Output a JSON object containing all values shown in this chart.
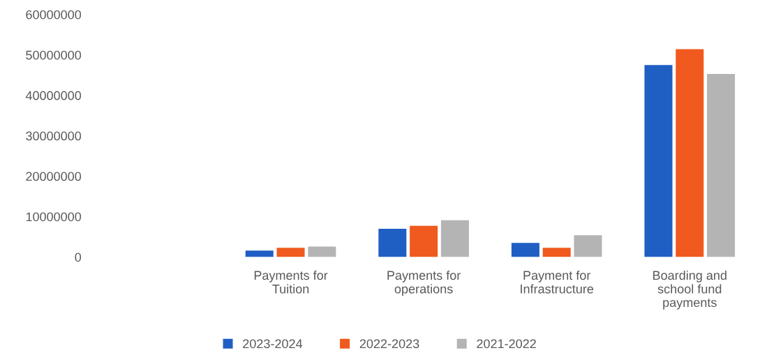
{
  "chart_data": {
    "type": "bar",
    "categories": [
      null,
      "Payments for\nTuition",
      "Payments for\noperations",
      "Payment for\nInfrastructure",
      "Boarding and\nschool fund\npayments"
    ],
    "series": [
      {
        "name": "2023-2024",
        "color": "#1f5fc4",
        "values": [
          null,
          1600000,
          7000000,
          3500000,
          47500000
        ]
      },
      {
        "name": "2022-2023",
        "color": "#f05a1e",
        "values": [
          null,
          2300000,
          7700000,
          2300000,
          51400000
        ]
      },
      {
        "name": "2021-2022",
        "color": "#b4b4b4",
        "values": [
          null,
          2600000,
          9100000,
          5400000,
          45300000
        ]
      }
    ],
    "ylim": [
      0,
      60000000
    ],
    "yticks": [
      0,
      10000000,
      20000000,
      30000000,
      40000000,
      50000000,
      60000000
    ],
    "grid": false,
    "legend": "bottom"
  }
}
